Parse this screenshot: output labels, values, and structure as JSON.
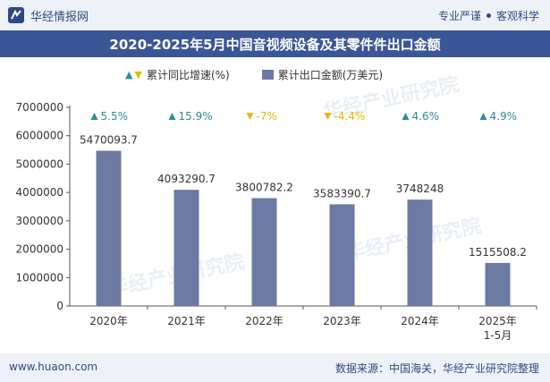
{
  "header": {
    "brand": "华经情报网",
    "tagline_left": "专业严谨",
    "tagline_right": "客观科学"
  },
  "title": "2020-2025年5月中国音视频设备及其零件件出口金额",
  "legend": {
    "growth_label": "累计同比增速(%)",
    "amount_label": "累计出口金额(万美元)"
  },
  "footer": {
    "site": "www.huaon.com",
    "source": "数据来源：中国海关，华经产业研究院整理"
  },
  "watermark": "华经产业研究院",
  "colors": {
    "bar": "#6b7aa3",
    "up": "#2e8b9a",
    "down": "#e8b800",
    "title_bg": "#3b5696"
  },
  "chart_data": {
    "type": "bar",
    "categories": [
      "2020年",
      "2021年",
      "2022年",
      "2023年",
      "2024年",
      "2025年\n1-5月"
    ],
    "series": [
      {
        "name": "累计出口金额(万美元)",
        "values": [
          5470093.7,
          4093290.7,
          3800782.2,
          3583390.7,
          3748248,
          1515508.2
        ]
      }
    ],
    "value_labels": [
      "5470093.7",
      "4093290.7",
      "3800782.2",
      "3583390.7",
      "3748248",
      "1515508.2"
    ],
    "growth": {
      "name": "累计同比增速(%)",
      "values": [
        5.5,
        15.9,
        -7,
        -4.4,
        4.6,
        4.9
      ],
      "labels": [
        "5.5%",
        "15.9%",
        "-7%",
        "-4.4%",
        "4.6%",
        "4.9%"
      ]
    },
    "yticks": [
      "0",
      "1000000",
      "2000000",
      "3000000",
      "4000000",
      "5000000",
      "6000000",
      "7000000"
    ],
    "ylim": [
      0,
      7000000
    ],
    "grid": false
  }
}
